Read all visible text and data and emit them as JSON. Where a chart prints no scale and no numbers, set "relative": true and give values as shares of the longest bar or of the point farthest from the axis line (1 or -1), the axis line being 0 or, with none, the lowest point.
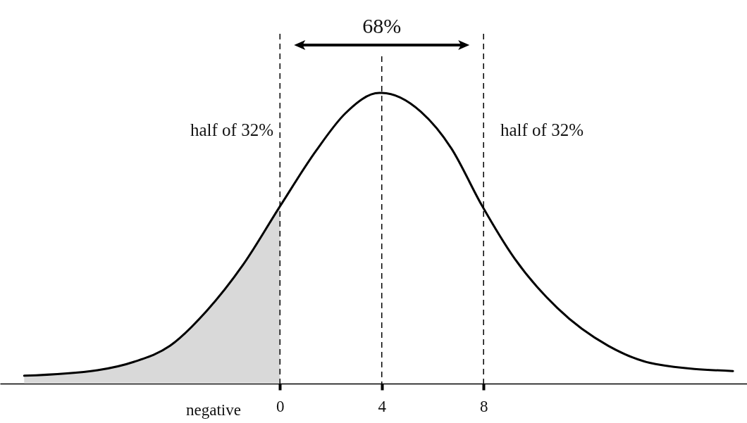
{
  "chart_data": {
    "type": "line",
    "relative": true,
    "xlim": [
      -11,
      18.35
    ],
    "xticks": [
      0,
      4,
      8
    ],
    "marker": "none",
    "line_style": "solid",
    "x": [
      -10.05,
      -7.17,
      -5.73,
      -4.32,
      -2.88,
      -1.44,
      0,
      1.41,
      2.57,
      3.9,
      4,
      5.54,
      6.73,
      7.92,
      9.22,
      10.9,
      12.9,
      14.76,
      17.8
    ],
    "series": [
      {
        "type": "area",
        "color": "#d9d9d9",
        "x": [
          -10.05,
          -7.17,
          -5.73,
          -4.32,
          -2.88,
          -1.44,
          0
        ],
        "values": [
          0.027,
          0.046,
          0.075,
          0.13,
          0.25,
          0.41,
          0.61
        ]
      },
      {
        "color": "#000000",
        "values": [
          0.027,
          0.046,
          0.075,
          0.13,
          0.25,
          0.41,
          0.61,
          0.8,
          0.93,
          1.0,
          1.0,
          0.935,
          0.81,
          0.615,
          0.43,
          0.26,
          0.13,
          0.067,
          0.043
        ]
      }
    ],
    "ref_lines": [
      {
        "axis": "x",
        "value": 0,
        "line_style": "dashed",
        "color": "#000000"
      },
      {
        "axis": "x",
        "value": 4,
        "line_style": "dashed",
        "color": "#000000"
      },
      {
        "axis": "x",
        "value": 8,
        "line_style": "dashed",
        "color": "#000000"
      }
    ],
    "annotations": [
      "68%",
      "half of 32%",
      "half of 32%",
      "negative"
    ]
  }
}
